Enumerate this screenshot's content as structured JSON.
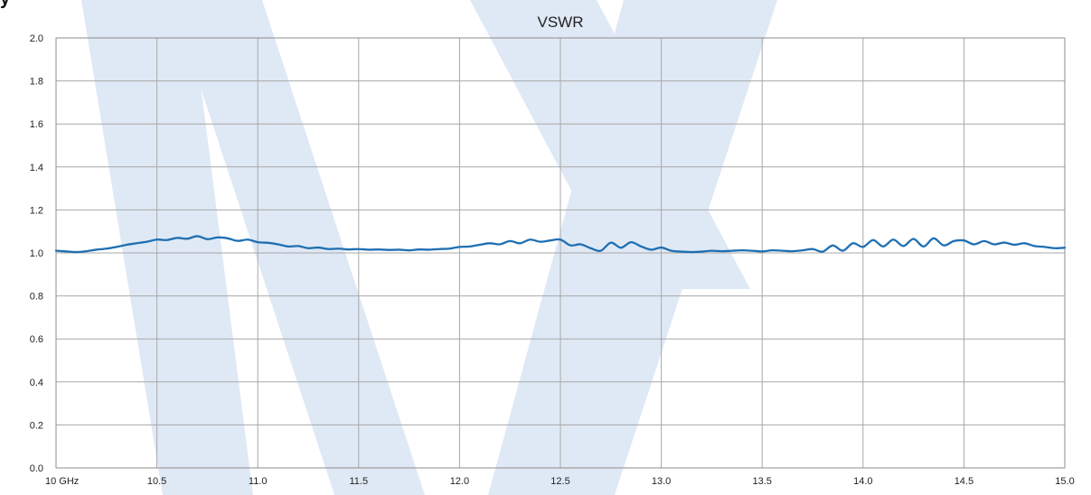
{
  "page": {
    "top_label": "y"
  },
  "colors": {
    "series": "#1f6fb2",
    "watermark": "#dfe9f5",
    "grid": "#a8a8a8",
    "text": "#222222"
  },
  "chart_data": {
    "type": "line",
    "title": "VSWR",
    "xlabel": "",
    "ylabel": "",
    "xlim": [
      10,
      15
    ],
    "ylim": [
      0,
      2
    ],
    "grid": true,
    "legend": "none",
    "x_ticks": [
      10,
      10.5,
      11,
      11.5,
      12,
      12.5,
      13,
      13.5,
      14,
      14.5,
      15
    ],
    "x_tick_labels": [
      "10  GHz",
      "10.5",
      "11.0",
      "11.5",
      "12.0",
      "12.5",
      "13.0",
      "13.5",
      "14.0",
      "14.5",
      "15.0"
    ],
    "y_ticks": [
      0,
      0.2,
      0.4,
      0.6,
      0.8,
      1.0,
      1.2,
      1.4,
      1.6,
      1.8,
      2.0
    ],
    "y_tick_labels": [
      "0.0",
      "0.2",
      "0.4",
      "0.6",
      "0.8",
      "1.0",
      "1.2",
      "1.4",
      "1.6",
      "1.8",
      "2.0"
    ],
    "series": [
      {
        "name": "",
        "x": [
          10.0,
          10.05,
          10.1,
          10.15,
          10.2,
          10.25,
          10.3,
          10.35,
          10.4,
          10.45,
          10.5,
          10.55,
          10.6,
          10.65,
          10.7,
          10.75,
          10.8,
          10.85,
          10.9,
          10.95,
          11.0,
          11.05,
          11.1,
          11.15,
          11.2,
          11.25,
          11.3,
          11.35,
          11.4,
          11.45,
          11.5,
          11.55,
          11.6,
          11.65,
          11.7,
          11.75,
          11.8,
          11.85,
          11.9,
          11.95,
          12.0,
          12.05,
          12.1,
          12.15,
          12.2,
          12.25,
          12.3,
          12.35,
          12.4,
          12.45,
          12.5,
          12.55,
          12.6,
          12.65,
          12.7,
          12.75,
          12.8,
          12.85,
          12.9,
          12.95,
          13.0,
          13.05,
          13.1,
          13.15,
          13.2,
          13.25,
          13.3,
          13.35,
          13.4,
          13.45,
          13.5,
          13.55,
          13.6,
          13.65,
          13.7,
          13.75,
          13.8,
          13.85,
          13.9,
          13.95,
          14.0,
          14.05,
          14.1,
          14.15,
          14.2,
          14.25,
          14.3,
          14.35,
          14.4,
          14.45,
          14.5,
          14.55,
          14.6,
          14.65,
          14.7,
          14.75,
          14.8,
          14.85,
          14.9,
          14.95,
          15.0
        ],
        "values": [
          1.01,
          1.007,
          1.004,
          1.008,
          1.015,
          1.02,
          1.028,
          1.038,
          1.045,
          1.052,
          1.062,
          1.06,
          1.07,
          1.066,
          1.078,
          1.064,
          1.072,
          1.068,
          1.056,
          1.062,
          1.05,
          1.047,
          1.04,
          1.03,
          1.032,
          1.022,
          1.025,
          1.018,
          1.02,
          1.016,
          1.018,
          1.015,
          1.016,
          1.014,
          1.015,
          1.012,
          1.016,
          1.015,
          1.018,
          1.02,
          1.028,
          1.03,
          1.038,
          1.045,
          1.04,
          1.055,
          1.045,
          1.062,
          1.052,
          1.058,
          1.062,
          1.035,
          1.04,
          1.022,
          1.01,
          1.048,
          1.024,
          1.05,
          1.03,
          1.015,
          1.025,
          1.01,
          1.006,
          1.004,
          1.006,
          1.01,
          1.008,
          1.01,
          1.012,
          1.01,
          1.007,
          1.012,
          1.01,
          1.008,
          1.012,
          1.018,
          1.006,
          1.035,
          1.01,
          1.045,
          1.028,
          1.06,
          1.03,
          1.062,
          1.032,
          1.065,
          1.03,
          1.068,
          1.035,
          1.055,
          1.058,
          1.04,
          1.055,
          1.04,
          1.048,
          1.038,
          1.045,
          1.032,
          1.028,
          1.022,
          1.024
        ]
      }
    ]
  }
}
